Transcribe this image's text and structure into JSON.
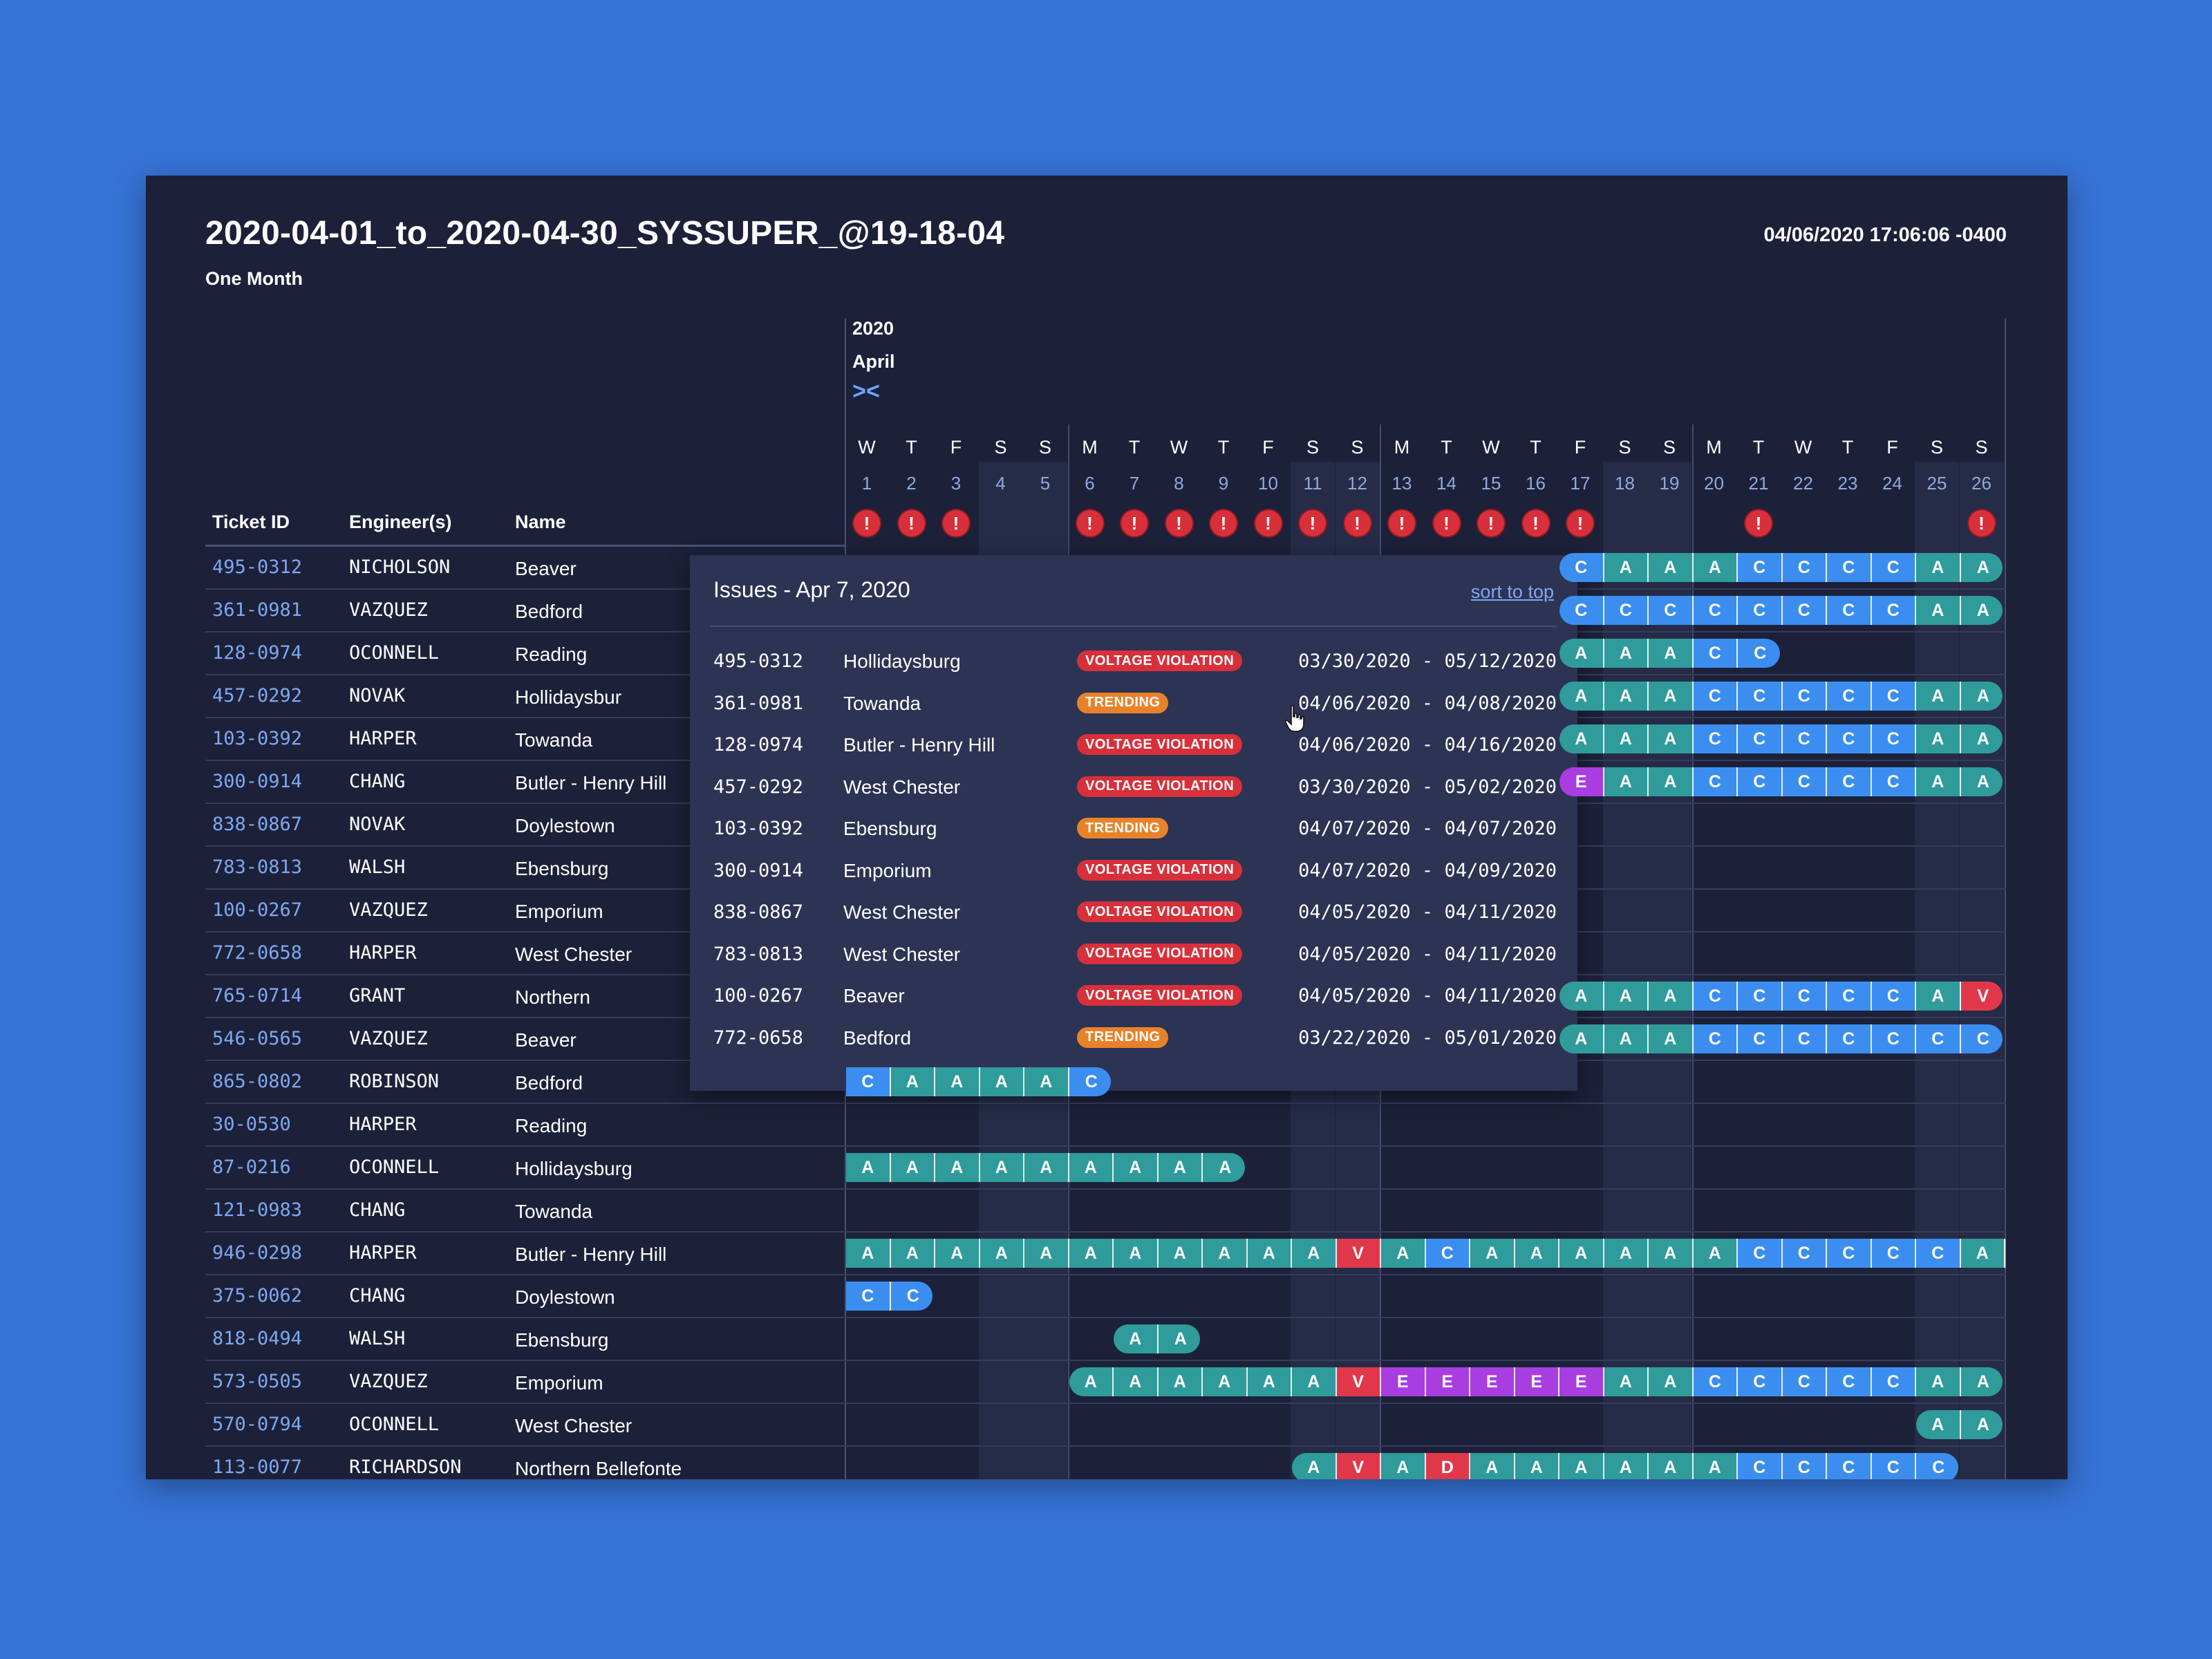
{
  "header": {
    "title": "2020-04-01_to_2020-04-30_SYSSUPER_@19-18-04",
    "subtitle": "One Month",
    "timestamp": "04/06/2020 17:06:06 -0400"
  },
  "timeline": {
    "year": "2020",
    "month": "April",
    "collapse_icon": "collapse-arrows-icon",
    "days": [
      {
        "dow": "W",
        "num": "1"
      },
      {
        "dow": "T",
        "num": "2"
      },
      {
        "dow": "F",
        "num": "3"
      },
      {
        "dow": "S",
        "num": "4"
      },
      {
        "dow": "S",
        "num": "5"
      },
      {
        "dow": "M",
        "num": "6"
      },
      {
        "dow": "T",
        "num": "7"
      },
      {
        "dow": "W",
        "num": "8"
      },
      {
        "dow": "T",
        "num": "9"
      },
      {
        "dow": "F",
        "num": "10"
      },
      {
        "dow": "S",
        "num": "11"
      },
      {
        "dow": "S",
        "num": "12"
      },
      {
        "dow": "M",
        "num": "13"
      },
      {
        "dow": "T",
        "num": "14"
      },
      {
        "dow": "W",
        "num": "15"
      },
      {
        "dow": "T",
        "num": "16"
      },
      {
        "dow": "F",
        "num": "17"
      },
      {
        "dow": "S",
        "num": "18"
      },
      {
        "dow": "S",
        "num": "19"
      },
      {
        "dow": "M",
        "num": "20"
      },
      {
        "dow": "T",
        "num": "21"
      },
      {
        "dow": "W",
        "num": "22"
      },
      {
        "dow": "T",
        "num": "23"
      },
      {
        "dow": "F",
        "num": "24"
      },
      {
        "dow": "S",
        "num": "25"
      },
      {
        "dow": "S",
        "num": "26"
      }
    ],
    "alert_days": [
      1,
      2,
      3,
      6,
      7,
      8,
      9,
      10,
      11,
      12,
      13,
      14,
      15,
      16,
      17,
      21,
      26
    ],
    "alert_glyph": "!"
  },
  "columns": {
    "ticket": "Ticket ID",
    "engineer": "Engineer(s)",
    "name": "Name"
  },
  "status_colors": {
    "A": "#2f9b9b",
    "C": "#3b8ef0",
    "V": "#e0384a",
    "E": "#a83ee0",
    "D": "#e0384a"
  },
  "rows": [
    {
      "id": "495-0312",
      "eng": "NICHOLSON",
      "name": "Beaver",
      "bars": [
        {
          "start": 17,
          "codes": "CAAACCCCAA"
        }
      ]
    },
    {
      "id": "361-0981",
      "eng": "VAZQUEZ",
      "name": "Bedford",
      "bars": [
        {
          "start": 17,
          "codes": "CCCCCCCCAA"
        }
      ]
    },
    {
      "id": "128-0974",
      "eng": "OCONNELL",
      "name": "Reading",
      "bars": [
        {
          "start": 17,
          "codes": "AAACC"
        }
      ]
    },
    {
      "id": "457-0292",
      "eng": "NOVAK",
      "name": "Hollidaysbur",
      "bars": [
        {
          "start": 17,
          "codes": "AAACCCCCAA"
        }
      ]
    },
    {
      "id": "103-0392",
      "eng": "HARPER",
      "name": "Towanda",
      "bars": [
        {
          "start": 17,
          "codes": "AAACCCCCAA"
        }
      ]
    },
    {
      "id": "300-0914",
      "eng": "CHANG",
      "name": "Butler - Henry Hill",
      "bars": [
        {
          "start": 17,
          "codes": "EAACCCCCAA"
        }
      ]
    },
    {
      "id": "838-0867",
      "eng": "NOVAK",
      "name": "Doylestown",
      "bars": []
    },
    {
      "id": "783-0813",
      "eng": "WALSH",
      "name": "Ebensburg",
      "bars": []
    },
    {
      "id": "100-0267",
      "eng": "VAZQUEZ",
      "name": "Emporium",
      "bars": []
    },
    {
      "id": "772-0658",
      "eng": "HARPER",
      "name": "West Chester",
      "bars": []
    },
    {
      "id": "765-0714",
      "eng": "GRANT",
      "name": "Northern",
      "bars": [
        {
          "start": 17,
          "codes": "AAACCCCCAV"
        }
      ]
    },
    {
      "id": "546-0565",
      "eng": "VAZQUEZ",
      "name": "Beaver",
      "bars": [
        {
          "start": 17,
          "codes": "AAACCCCCCC"
        }
      ]
    },
    {
      "id": "865-0802",
      "eng": "ROBINSON",
      "name": "Bedford",
      "bars": [
        {
          "start": 1,
          "codes": "CAAAAC"
        }
      ]
    },
    {
      "id": "30-0530",
      "eng": "HARPER",
      "name": "Reading",
      "bars": []
    },
    {
      "id": "87-0216",
      "eng": "OCONNELL",
      "name": "Hollidaysburg",
      "bars": [
        {
          "start": 1,
          "codes": "AAAAAAAAA"
        }
      ]
    },
    {
      "id": "121-0983",
      "eng": "CHANG",
      "name": "Towanda",
      "bars": []
    },
    {
      "id": "946-0298",
      "eng": "HARPER",
      "name": "Butler - Henry Hill",
      "bars": [
        {
          "start": 1,
          "codes": "AAAAAAAAAAAVACAAAAAACCCCCAA"
        }
      ]
    },
    {
      "id": "375-0062",
      "eng": "CHANG",
      "name": "Doylestown",
      "bars": [
        {
          "start": 1,
          "codes": "CC"
        }
      ]
    },
    {
      "id": "818-0494",
      "eng": "WALSH",
      "name": "Ebensburg",
      "bars": [
        {
          "start": 7,
          "codes": "AA"
        }
      ]
    },
    {
      "id": "573-0505",
      "eng": "VAZQUEZ",
      "name": "Emporium",
      "bars": [
        {
          "start": 6,
          "codes": "AAAAAAVEEEEEAACCCCCAA"
        }
      ]
    },
    {
      "id": "570-0794",
      "eng": "OCONNELL",
      "name": "West Chester",
      "bars": [
        {
          "start": 25,
          "codes": "AA"
        }
      ]
    },
    {
      "id": "113-0077",
      "eng": "RICHARDSON",
      "name": "Northern Bellefonte",
      "bars": [
        {
          "start": 11,
          "codes": "AVADAAAAAACCCCC"
        }
      ]
    }
  ],
  "popup": {
    "title": "Issues - Apr 7, 2020",
    "sort_label": "sort to top",
    "badge_colors": {
      "VOLTAGE VIOLATION": "#d8303a",
      "TRENDING": "#e8822a"
    },
    "items": [
      {
        "id": "495-0312",
        "name": "Hollidaysburg",
        "badge": "VOLTAGE VIOLATION",
        "range": "03/30/2020 - 05/12/2020"
      },
      {
        "id": "361-0981",
        "name": "Towanda",
        "badge": "TRENDING",
        "range": "04/06/2020 - 04/08/2020"
      },
      {
        "id": "128-0974",
        "name": "Butler - Henry Hill",
        "badge": "VOLTAGE VIOLATION",
        "range": "04/06/2020 - 04/16/2020"
      },
      {
        "id": "457-0292",
        "name": "West Chester",
        "badge": "VOLTAGE VIOLATION",
        "range": "03/30/2020 - 05/02/2020"
      },
      {
        "id": "103-0392",
        "name": "Ebensburg",
        "badge": "TRENDING",
        "range": "04/07/2020 - 04/07/2020"
      },
      {
        "id": "300-0914",
        "name": "Emporium",
        "badge": "VOLTAGE VIOLATION",
        "range": "04/07/2020 - 04/09/2020"
      },
      {
        "id": "838-0867",
        "name": "West Chester",
        "badge": "VOLTAGE VIOLATION",
        "range": "04/05/2020 - 04/11/2020"
      },
      {
        "id": "783-0813",
        "name": "West Chester",
        "badge": "VOLTAGE VIOLATION",
        "range": "04/05/2020 - 04/11/2020"
      },
      {
        "id": "100-0267",
        "name": "Beaver",
        "badge": "VOLTAGE VIOLATION",
        "range": "04/05/2020 - 04/11/2020"
      },
      {
        "id": "772-0658",
        "name": "Bedford",
        "badge": "TRENDING",
        "range": "03/22/2020 - 05/01/2020"
      }
    ]
  },
  "cursor_icon": "hand-pointer-icon"
}
